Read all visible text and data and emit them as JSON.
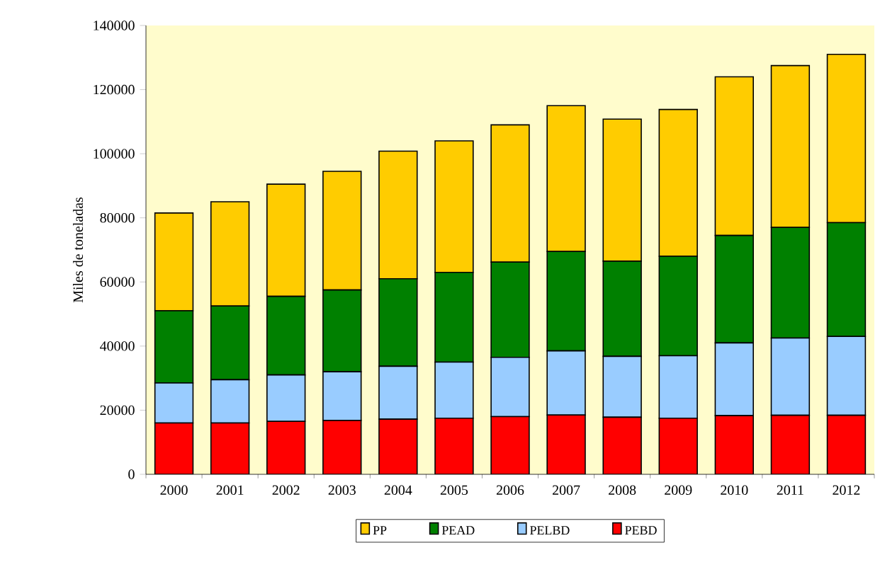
{
  "chart_data": {
    "type": "bar",
    "stacked": true,
    "ylabel": "Miles de toneladas",
    "categories": [
      "2000",
      "2001",
      "2002",
      "2003",
      "2004",
      "2005",
      "2006",
      "2007",
      "2008",
      "2009",
      "2010",
      "2011",
      "2012"
    ],
    "series": [
      {
        "name": "PEBD",
        "color": "#ff0000",
        "values": [
          16000,
          16000,
          16500,
          16800,
          17200,
          17500,
          18000,
          18500,
          17800,
          17500,
          18300,
          18400,
          18400
        ]
      },
      {
        "name": "PELBD",
        "color": "#99ccff",
        "values": [
          12500,
          13500,
          14500,
          15200,
          16500,
          17500,
          18500,
          20000,
          19000,
          19500,
          22700,
          24100,
          24600
        ]
      },
      {
        "name": "PEAD",
        "color": "#008000",
        "values": [
          22500,
          23000,
          24500,
          25500,
          27300,
          28000,
          29700,
          31000,
          29700,
          31000,
          33500,
          34500,
          35500
        ]
      },
      {
        "name": "PP",
        "color": "#ffcc00",
        "values": [
          30500,
          32500,
          35000,
          37000,
          39800,
          41000,
          42800,
          45500,
          44300,
          45800,
          49500,
          50500,
          52500
        ]
      }
    ],
    "ylim": [
      0,
      140000
    ],
    "yticks": [
      0,
      20000,
      40000,
      60000,
      80000,
      100000,
      120000,
      140000
    ],
    "grid": false,
    "legend": "bottom"
  }
}
